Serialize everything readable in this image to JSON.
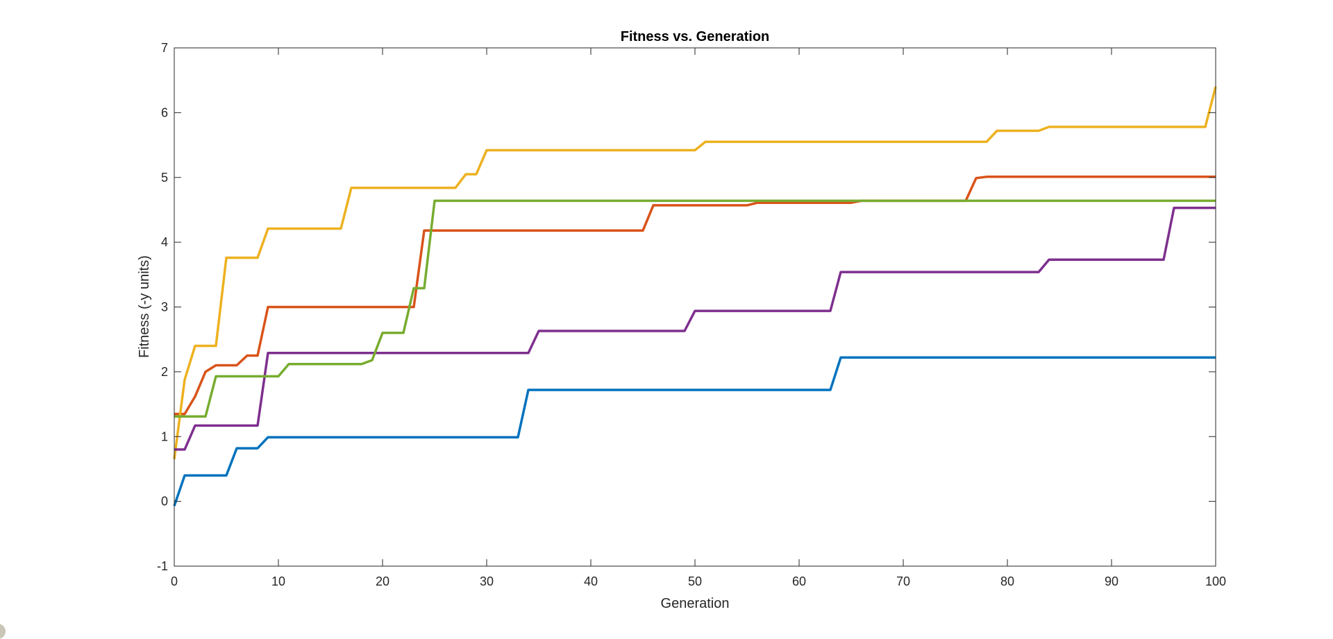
{
  "chart_data": {
    "type": "line",
    "title": "Fitness vs. Generation",
    "xlabel": "Generation",
    "ylabel": "Fitness (-y units)",
    "xlim": [
      0,
      100
    ],
    "ylim": [
      -1,
      7
    ],
    "xticks": [
      0,
      10,
      20,
      30,
      40,
      50,
      60,
      70,
      80,
      90,
      100
    ],
    "yticks": [
      -1,
      0,
      1,
      2,
      3,
      4,
      5,
      6,
      7
    ],
    "grid": false,
    "legend": "none",
    "series": [
      {
        "color": "#0072BD",
        "x": [
          0,
          1,
          5,
          6,
          8,
          9,
          33,
          34,
          63,
          64,
          100
        ],
        "y": [
          -0.07,
          0.4,
          0.4,
          0.82,
          0.82,
          0.99,
          0.99,
          1.72,
          1.72,
          2.22,
          2.22
        ]
      },
      {
        "color": "#D95319",
        "x": [
          0,
          1,
          2,
          3,
          4,
          6,
          7,
          8,
          9,
          23,
          24,
          45,
          46,
          55,
          56,
          65,
          66,
          76,
          77,
          78,
          100
        ],
        "y": [
          1.35,
          1.35,
          1.62,
          2.0,
          2.1,
          2.1,
          2.25,
          2.25,
          3.0,
          3.0,
          4.18,
          4.18,
          4.57,
          4.57,
          4.61,
          4.61,
          4.64,
          4.64,
          4.99,
          5.01,
          5.01
        ]
      },
      {
        "color": "#EDB120",
        "x": [
          0,
          1,
          2,
          4,
          5,
          8,
          9,
          16,
          17,
          27,
          28,
          29,
          30,
          50,
          51,
          78,
          79,
          83,
          84,
          99,
          100
        ],
        "y": [
          0.65,
          1.88,
          2.4,
          2.4,
          3.76,
          3.76,
          4.21,
          4.21,
          4.84,
          4.84,
          5.05,
          5.05,
          5.42,
          5.42,
          5.55,
          5.55,
          5.72,
          5.72,
          5.78,
          5.78,
          6.4
        ]
      },
      {
        "color": "#7E2F8E",
        "x": [
          0,
          1,
          2,
          8,
          9,
          34,
          35,
          49,
          50,
          63,
          64,
          83,
          84,
          95,
          96,
          100
        ],
        "y": [
          0.8,
          0.8,
          1.17,
          1.17,
          2.29,
          2.29,
          2.63,
          2.63,
          2.94,
          2.94,
          3.54,
          3.54,
          3.73,
          3.73,
          4.53,
          4.53
        ]
      },
      {
        "color": "#77AC30",
        "x": [
          0,
          3,
          4,
          10,
          11,
          18,
          19,
          20,
          22,
          23,
          24,
          25,
          100
        ],
        "y": [
          1.31,
          1.31,
          1.93,
          1.93,
          2.12,
          2.12,
          2.18,
          2.6,
          2.6,
          3.29,
          3.29,
          4.64,
          4.64
        ]
      }
    ]
  }
}
